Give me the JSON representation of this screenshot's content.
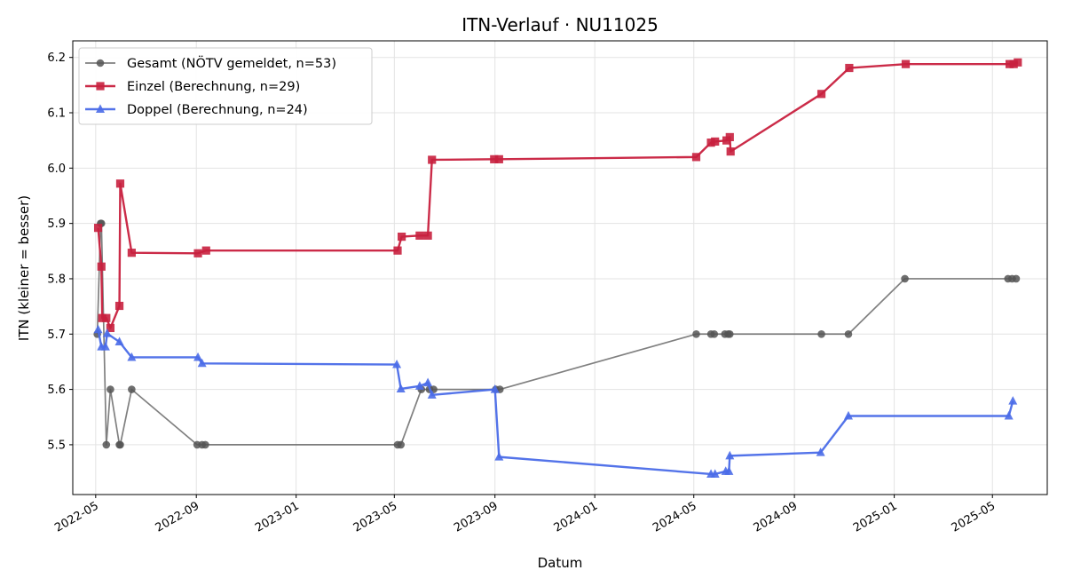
{
  "chart_data": {
    "type": "line",
    "title": "ITN-Verlauf · NU11025",
    "xlabel": "Datum",
    "ylabel": "ITN  (kleiner = besser)",
    "ylim": [
      5.41,
      6.23
    ],
    "xlim": [
      "2022-04-03",
      "2025-07-07"
    ],
    "grid": true,
    "legend_position": "top-left",
    "x_ticks": [
      "2022-05",
      "2022-09",
      "2023-01",
      "2023-05",
      "2023-09",
      "2024-01",
      "2024-05",
      "2024-09",
      "2025-01",
      "2025-05"
    ],
    "y_ticks": [
      5.5,
      5.6,
      5.7,
      5.8,
      5.9,
      6.0,
      6.1,
      6.2
    ],
    "series": [
      {
        "name": "Gesamt (NÖTV gemeldet, n=53)",
        "color": "#555555",
        "marker": "circle",
        "points": [
          [
            "2022-05-03",
            5.7
          ],
          [
            "2022-05-07",
            5.9
          ],
          [
            "2022-05-08",
            5.9
          ],
          [
            "2022-05-14",
            5.5
          ],
          [
            "2022-05-19",
            5.6
          ],
          [
            "2022-05-30",
            5.5
          ],
          [
            "2022-05-31",
            5.5
          ],
          [
            "2022-06-14",
            5.6
          ],
          [
            "2022-09-02",
            5.5
          ],
          [
            "2022-09-08",
            5.5
          ],
          [
            "2022-09-12",
            5.5
          ],
          [
            "2023-05-05",
            5.5
          ],
          [
            "2023-05-09",
            5.5
          ],
          [
            "2023-06-03",
            5.6
          ],
          [
            "2023-06-13",
            5.6
          ],
          [
            "2023-06-18",
            5.6
          ],
          [
            "2023-09-02",
            5.6
          ],
          [
            "2023-09-07",
            5.6
          ],
          [
            "2024-05-04",
            5.7
          ],
          [
            "2024-05-22",
            5.7
          ],
          [
            "2024-05-26",
            5.7
          ],
          [
            "2024-06-08",
            5.7
          ],
          [
            "2024-06-12",
            5.7
          ],
          [
            "2024-06-14",
            5.7
          ],
          [
            "2024-10-04",
            5.7
          ],
          [
            "2024-11-06",
            5.7
          ],
          [
            "2025-01-14",
            5.8
          ],
          [
            "2025-05-20",
            5.8
          ],
          [
            "2025-05-25",
            5.8
          ],
          [
            "2025-05-30",
            5.8
          ]
        ]
      },
      {
        "name": "Einzel (Berechnung, n=29)",
        "color": "#c8203e",
        "marker": "square",
        "points": [
          [
            "2022-05-04",
            5.892
          ],
          [
            "2022-05-08",
            5.822
          ],
          [
            "2022-05-09",
            5.729
          ],
          [
            "2022-05-14",
            5.729
          ],
          [
            "2022-05-19",
            5.711
          ],
          [
            "2022-05-30",
            5.751
          ],
          [
            "2022-05-31",
            5.972
          ],
          [
            "2022-06-14",
            5.847
          ],
          [
            "2022-09-03",
            5.846
          ],
          [
            "2022-09-13",
            5.851
          ],
          [
            "2023-05-05",
            5.851
          ],
          [
            "2023-05-10",
            5.876
          ],
          [
            "2023-06-01",
            5.878
          ],
          [
            "2023-06-11",
            5.878
          ],
          [
            "2023-06-16",
            6.015
          ],
          [
            "2023-08-31",
            6.016
          ],
          [
            "2023-09-06",
            6.016
          ],
          [
            "2024-05-04",
            6.02
          ],
          [
            "2024-05-22",
            6.046
          ],
          [
            "2024-05-27",
            6.048
          ],
          [
            "2024-06-10",
            6.05
          ],
          [
            "2024-06-14",
            6.056
          ],
          [
            "2024-06-15",
            6.03
          ],
          [
            "2024-10-04",
            6.134
          ],
          [
            "2024-11-07",
            6.181
          ],
          [
            "2025-01-15",
            6.188
          ],
          [
            "2025-05-22",
            6.188
          ],
          [
            "2025-05-27",
            6.188
          ],
          [
            "2025-06-01",
            6.191
          ]
        ]
      },
      {
        "name": "Doppel (Berechnung, n=24)",
        "color": "#4a6be8",
        "marker": "triangle",
        "points": [
          [
            "2022-05-04",
            5.708
          ],
          [
            "2022-05-08",
            5.677
          ],
          [
            "2022-05-13",
            5.677
          ],
          [
            "2022-05-15",
            5.701
          ],
          [
            "2022-05-30",
            5.686
          ],
          [
            "2022-06-14",
            5.658
          ],
          [
            "2022-09-03",
            5.658
          ],
          [
            "2022-09-08",
            5.647
          ],
          [
            "2023-05-04",
            5.645
          ],
          [
            "2023-05-09",
            5.601
          ],
          [
            "2023-06-01",
            5.606
          ],
          [
            "2023-06-11",
            5.612
          ],
          [
            "2023-06-16",
            5.59
          ],
          [
            "2023-09-01",
            5.6
          ],
          [
            "2023-09-06",
            5.478
          ],
          [
            "2024-05-22",
            5.447
          ],
          [
            "2024-05-27",
            5.447
          ],
          [
            "2024-06-09",
            5.452
          ],
          [
            "2024-06-13",
            5.452
          ],
          [
            "2024-06-14",
            5.48
          ],
          [
            "2024-10-03",
            5.486
          ],
          [
            "2024-11-06",
            5.552
          ],
          [
            "2025-05-21",
            5.552
          ],
          [
            "2025-05-26",
            5.579
          ]
        ]
      }
    ]
  }
}
